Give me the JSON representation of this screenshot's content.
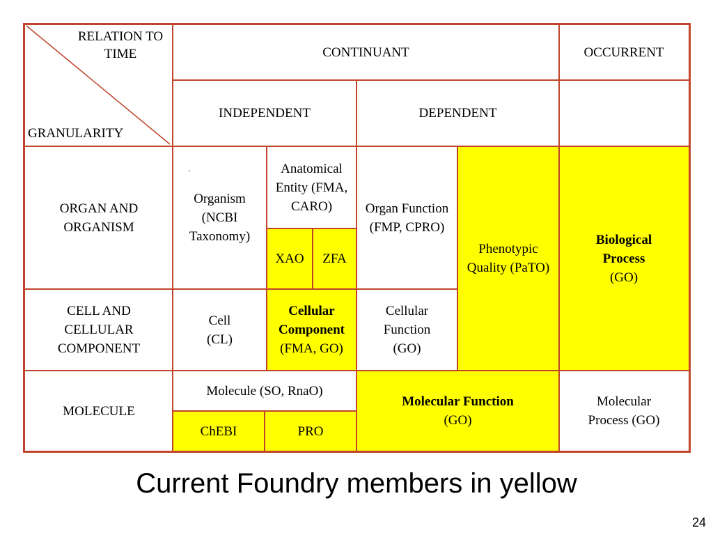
{
  "table": {
    "corner": {
      "top": "RELATION TO TIME",
      "bottom": "GRANULARITY"
    },
    "columns": {
      "continuant": "CONTINUANT",
      "occurrent": "OCCURRENT",
      "independent": "INDEPENDENT",
      "dependent": "DEPENDENT"
    },
    "rows": {
      "organ": "ORGAN AND ORGANISM",
      "cell": "CELL AND CELLULAR COMPONENT",
      "molecule": "MOLECULE"
    },
    "cells": {
      "organism": "Organism (NCBI Taxonomy)",
      "anatomical": "Anatomical Entity (FMA, CARO)",
      "xao": "XAO",
      "zfa": "ZFA",
      "organ_function": "Organ Function (FMP, CPRO)",
      "phenotypic": "Phenotypic Quality (PaTO)",
      "bio_process": {
        "bold": "Biological Process",
        "sub": "(GO)"
      },
      "cell_cl": "Cell (CL)",
      "cellular_component": {
        "bold": "Cellular Component",
        "sub": "(FMA, GO)"
      },
      "cellular_function": "Cellular Function (GO)",
      "molecule": "Molecule (SO, RnaO)",
      "chebi": "ChEBI",
      "pro": "PRO",
      "molecular_function": {
        "bold": "Molecular Function",
        "sub": "(GO)"
      },
      "molecular_process": "Molecular Process (GO)"
    }
  },
  "caption": "Current Foundry members in yellow",
  "page_number": "24",
  "colors": {
    "highlight": "#ffff00",
    "border": "#c0442a"
  }
}
